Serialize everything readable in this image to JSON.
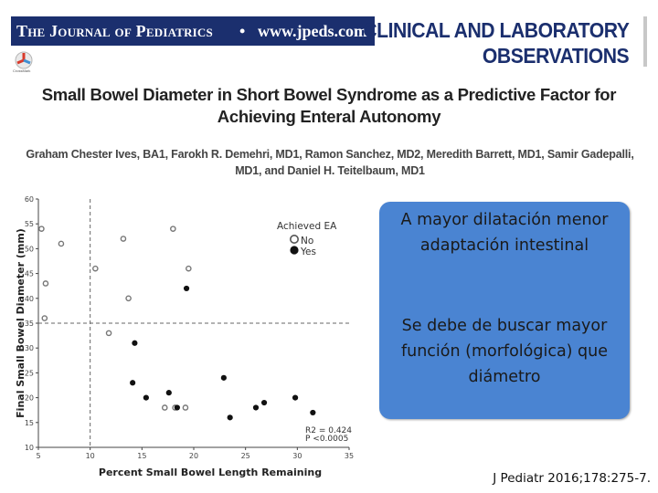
{
  "header": {
    "journal_name": "The Journal of Pediatrics",
    "separator": "•",
    "url": "www.jpeds.com",
    "section_line1": "CLINICAL AND LABORATORY",
    "section_line2": "OBSERVATIONS",
    "crossmark_label": "CrossMark",
    "bar_color": "#1b2f6e"
  },
  "article": {
    "title": "Small Bowel Diameter in Short Bowel Syndrome as a Predictive Factor for Achieving Enteral Autonomy",
    "authors": "Graham Chester Ives, BA1, Farokh R. Demehri, MD1, Ramon Sanchez, MD2, Meredith Barrett, MD1, Samir Gadepalli, MD1, and Daniel H. Teitelbaum, MD1"
  },
  "chart_data": {
    "type": "scatter",
    "xlabel": "Percent Small Bowel Length Remaining",
    "ylabel": "Final Small Bowel Diameter  (mm)",
    "xlim": [
      5,
      35
    ],
    "ylim": [
      10,
      60
    ],
    "x_ticks": [
      "5",
      "10",
      "15",
      "20",
      "25",
      "30",
      "35"
    ],
    "y_ticks": [
      "10",
      "15",
      "20",
      "25",
      "30",
      "35",
      "40",
      "45",
      "50",
      "55",
      "60"
    ],
    "reference_lines": {
      "x": 10,
      "y": 35
    },
    "legend": {
      "title": "Achieved EA",
      "placement": "top-right"
    },
    "series": [
      {
        "name": "No",
        "marker": "open-circle",
        "points": [
          [
            5.3,
            54
          ],
          [
            7.2,
            51
          ],
          [
            5.7,
            43
          ],
          [
            5.6,
            36
          ],
          [
            10.5,
            46
          ],
          [
            11.8,
            33
          ],
          [
            13.2,
            52
          ],
          [
            13.7,
            40
          ],
          [
            18,
            54
          ],
          [
            19.5,
            46
          ],
          [
            17.2,
            18
          ],
          [
            18.2,
            18
          ],
          [
            19.2,
            18
          ]
        ]
      },
      {
        "name": "Yes",
        "marker": "filled-circle",
        "points": [
          [
            19.3,
            42
          ],
          [
            14.3,
            31
          ],
          [
            14.1,
            23
          ],
          [
            15.4,
            20
          ],
          [
            17.6,
            21
          ],
          [
            18.4,
            18
          ],
          [
            22.9,
            24
          ],
          [
            23.5,
            16
          ],
          [
            26,
            18
          ],
          [
            26.8,
            19
          ],
          [
            29.8,
            20
          ],
          [
            31.5,
            17
          ]
        ]
      }
    ],
    "annotations": [
      "R2 = 0.424",
      "P <0.0005"
    ],
    "grid": false
  },
  "callout": {
    "para1": "A mayor dilatación menor adaptación intestinal",
    "para2": "Se debe de buscar mayor función (morfológica) que diámetro",
    "color": "#4a84d2"
  },
  "citation": "J Pediatr 2016;178:275-7."
}
